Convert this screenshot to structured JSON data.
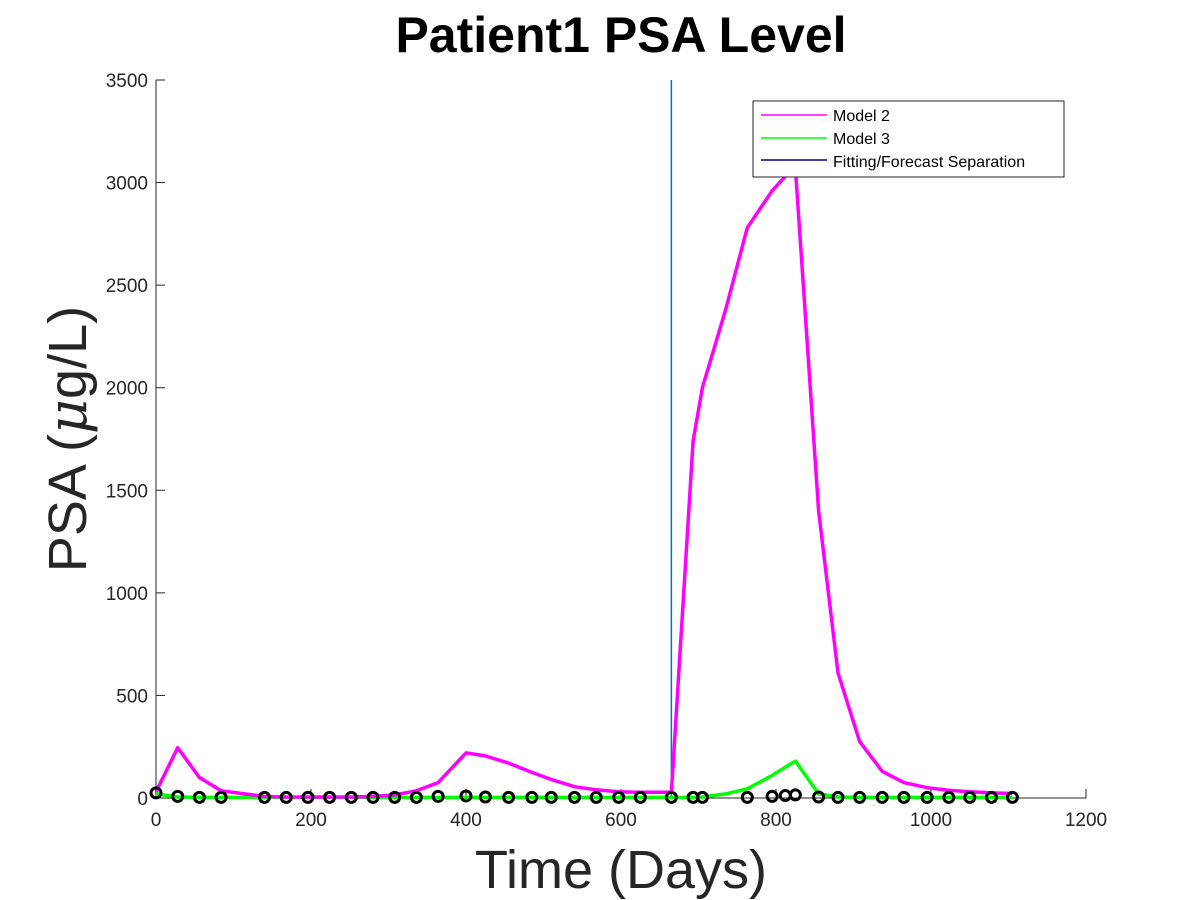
{
  "chart_data": {
    "type": "line",
    "title": "Patient1 PSA Level",
    "xlabel": "Time (Days)",
    "ylabel": {
      "prefix": "PSA (",
      "mu": "μ",
      "suffix": "g/L)"
    },
    "xlim": [
      0,
      1200
    ],
    "ylim": [
      0,
      3500
    ],
    "xticks": [
      0,
      200,
      400,
      600,
      800,
      1000,
      1200
    ],
    "yticks": [
      0,
      500,
      1000,
      1500,
      2000,
      2500,
      3000,
      3500
    ],
    "grid": false,
    "legend_position": "top-right",
    "separation_x": 665,
    "series": [
      {
        "name": "Model 2",
        "color": "#ff00ff",
        "x": [
          0,
          28,
          56,
          84,
          140,
          168,
          196,
          224,
          252,
          280,
          308,
          336,
          364,
          400,
          425,
          455,
          485,
          510,
          540,
          568,
          597,
          625,
          665,
          693,
          705,
          735,
          763,
          795,
          812,
          825,
          855,
          880,
          908,
          937,
          965,
          995,
          1023,
          1050,
          1078,
          1105
        ],
        "y": [
          30,
          245,
          100,
          35,
          8,
          5,
          5,
          5,
          5,
          8,
          15,
          35,
          75,
          220,
          205,
          170,
          125,
          90,
          55,
          40,
          30,
          28,
          28,
          1740,
          2000,
          2380,
          2780,
          2960,
          3030,
          3070,
          1400,
          610,
          275,
          130,
          75,
          50,
          38,
          30,
          25,
          22
        ]
      },
      {
        "name": "Model 3",
        "color": "#00ff00",
        "x": [
          0,
          28,
          56,
          84,
          140,
          168,
          196,
          224,
          252,
          280,
          308,
          336,
          364,
          400,
          425,
          455,
          485,
          510,
          540,
          568,
          597,
          625,
          665,
          693,
          705,
          735,
          763,
          795,
          812,
          825,
          855,
          880,
          908,
          937,
          965,
          995,
          1023,
          1050,
          1078,
          1105
        ],
        "y": [
          20,
          5,
          3,
          3,
          3,
          3,
          3,
          3,
          3,
          3,
          3,
          3,
          3,
          3,
          3,
          3,
          3,
          3,
          3,
          3,
          3,
          3,
          3,
          3,
          5,
          20,
          45,
          110,
          150,
          180,
          20,
          5,
          3,
          3,
          3,
          3,
          3,
          3,
          3,
          3
        ]
      },
      {
        "name": "Fitting/Forecast Separation",
        "color": "#000080",
        "type": "vertical-line"
      }
    ],
    "observations": {
      "marker": "circle",
      "color": "#000000",
      "x": [
        0,
        28,
        56,
        84,
        140,
        168,
        196,
        224,
        252,
        280,
        308,
        336,
        364,
        400,
        425,
        455,
        485,
        510,
        540,
        568,
        597,
        625,
        665,
        693,
        705,
        763,
        795,
        812,
        825,
        855,
        880,
        908,
        937,
        965,
        995,
        1023,
        1050,
        1078,
        1105
      ],
      "y": [
        25,
        8,
        3,
        3,
        3,
        3,
        3,
        3,
        3,
        3,
        3,
        3,
        8,
        10,
        5,
        3,
        3,
        3,
        3,
        3,
        3,
        3,
        3,
        3,
        3,
        3,
        8,
        12,
        15,
        5,
        3,
        3,
        3,
        3,
        3,
        3,
        3,
        3,
        3
      ]
    }
  },
  "colors": {
    "separation_line": "#0072bd",
    "axis": "#262626"
  }
}
